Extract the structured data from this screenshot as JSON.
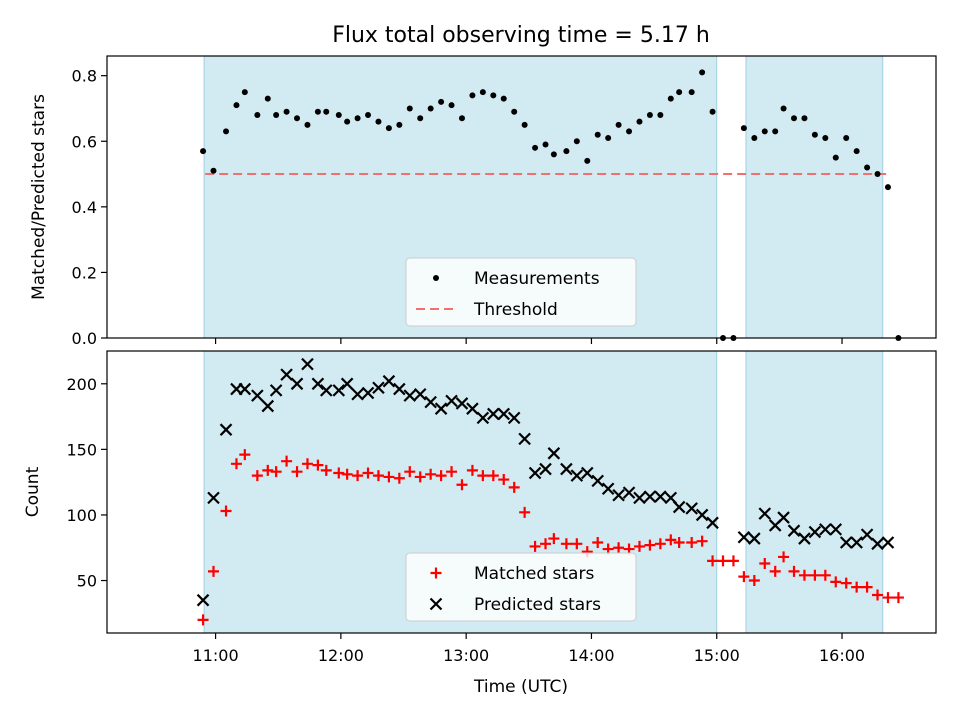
{
  "chart_data": {
    "title": "Flux total observing time = 5.17 h",
    "xlabel": "Time (UTC)",
    "x_ticks": [
      "11:00",
      "12:00",
      "13:00",
      "14:00",
      "15:00",
      "16:00"
    ],
    "x_tick_minutes": [
      660,
      720,
      780,
      840,
      900,
      960
    ],
    "xlim_minutes": [
      608,
      1005
    ],
    "shaded_intervals_minutes": [
      [
        654.5,
        900
      ],
      [
        914,
        979.5
      ]
    ],
    "shade_color": "#add8e6",
    "panels": [
      {
        "type": "scatter",
        "ylabel": "Matched/Predicted stars",
        "ylim": [
          0,
          0.86
        ],
        "y_ticks": [
          0.0,
          0.2,
          0.4,
          0.6,
          0.8
        ],
        "y_tick_labels": [
          "0.0",
          "0.2",
          "0.4",
          "0.6",
          "0.8"
        ],
        "threshold": {
          "label": "Threshold",
          "value": 0.5,
          "color": "#f07070"
        },
        "legend": {
          "position": "lower center",
          "entries": [
            "Measurements",
            "Threshold"
          ]
        },
        "series": [
          {
            "name": "Measurements",
            "marker": "dot",
            "color": "#000000",
            "times": [
              "10:54",
              "10:59",
              "11:05",
              "11:10",
              "11:14",
              "11:20",
              "11:25",
              "11:29",
              "11:34",
              "11:39",
              "11:44",
              "11:49",
              "11:53",
              "11:59",
              "12:03",
              "12:08",
              "12:13",
              "12:18",
              "12:23",
              "12:28",
              "12:33",
              "12:38",
              "12:43",
              "12:48",
              "12:53",
              "12:58",
              "13:03",
              "13:08",
              "13:13",
              "13:18",
              "13:23",
              "13:28",
              "13:33",
              "13:38",
              "13:42",
              "13:48",
              "13:53",
              "13:58",
              "14:03",
              "14:08",
              "14:13",
              "14:18",
              "14:23",
              "14:28",
              "14:33",
              "14:38",
              "14:42",
              "14:48",
              "14:53",
              "14:58",
              "15:03",
              "15:08",
              "15:13",
              "15:18",
              "15:23",
              "15:28",
              "15:32",
              "15:37",
              "15:42",
              "15:47",
              "15:52",
              "15:57",
              "16:02",
              "16:07",
              "16:12",
              "16:17",
              "16:22",
              "16:27"
            ],
            "values": [
              0.57,
              0.51,
              0.63,
              0.71,
              0.75,
              0.68,
              0.73,
              0.68,
              0.69,
              0.67,
              0.65,
              0.69,
              0.69,
              0.68,
              0.66,
              0.67,
              0.68,
              0.66,
              0.64,
              0.65,
              0.7,
              0.67,
              0.7,
              0.72,
              0.71,
              0.67,
              0.74,
              0.75,
              0.74,
              0.73,
              0.69,
              0.65,
              0.58,
              0.59,
              0.56,
              0.57,
              0.6,
              0.54,
              0.62,
              0.61,
              0.65,
              0.63,
              0.66,
              0.68,
              0.68,
              0.73,
              0.75,
              0.75,
              0.81,
              0.69,
              0.0,
              0.0,
              0.64,
              0.61,
              0.63,
              0.63,
              0.7,
              0.67,
              0.67,
              0.62,
              0.61,
              0.55,
              0.61,
              0.57,
              0.52,
              0.5,
              0.46,
              0.0
            ]
          }
        ]
      },
      {
        "type": "scatter",
        "ylabel": "Count",
        "ylim": [
          10,
          225
        ],
        "y_ticks": [
          50,
          100,
          150,
          200
        ],
        "y_tick_labels": [
          "50",
          "100",
          "150",
          "200"
        ],
        "legend": {
          "position": "lower center",
          "entries": [
            "Matched stars",
            "Predicted stars"
          ]
        },
        "series": [
          {
            "name": "Matched stars",
            "marker": "plus",
            "color": "#ff0000",
            "times": [
              "10:54",
              "10:59",
              "11:05",
              "11:10",
              "11:14",
              "11:20",
              "11:25",
              "11:29",
              "11:34",
              "11:39",
              "11:44",
              "11:49",
              "11:53",
              "11:59",
              "12:03",
              "12:08",
              "12:13",
              "12:18",
              "12:23",
              "12:28",
              "12:33",
              "12:38",
              "12:43",
              "12:48",
              "12:53",
              "12:58",
              "13:03",
              "13:08",
              "13:13",
              "13:18",
              "13:23",
              "13:28",
              "13:33",
              "13:38",
              "13:42",
              "13:48",
              "13:53",
              "13:58",
              "14:03",
              "14:08",
              "14:13",
              "14:18",
              "14:23",
              "14:28",
              "14:33",
              "14:38",
              "14:42",
              "14:48",
              "14:53",
              "14:58",
              "15:03",
              "15:08",
              "15:13",
              "15:18",
              "15:23",
              "15:28",
              "15:32",
              "15:37",
              "15:42",
              "15:47",
              "15:52",
              "15:57",
              "16:02",
              "16:07",
              "16:12",
              "16:17",
              "16:22",
              "16:27"
            ],
            "values": [
              20,
              57,
              103,
              139,
              146,
              130,
              134,
              133,
              141,
              133,
              139,
              138,
              134,
              132,
              131,
              130,
              132,
              130,
              129,
              128,
              133,
              129,
              131,
              130,
              133,
              123,
              134,
              130,
              130,
              127,
              121,
              102,
              76,
              78,
              82,
              78,
              78,
              72,
              79,
              74,
              75,
              74,
              76,
              77,
              78,
              81,
              79,
              79,
              80,
              65,
              65,
              65,
              53,
              50,
              63,
              57,
              68,
              57,
              54,
              54,
              54,
              49,
              48,
              45,
              45,
              39,
              37,
              37
            ]
          },
          {
            "name": "Predicted stars",
            "marker": "x",
            "color": "#000000",
            "times": [
              "10:54",
              "10:59",
              "11:05",
              "11:10",
              "11:14",
              "11:20",
              "11:25",
              "11:29",
              "11:34",
              "11:39",
              "11:44",
              "11:49",
              "11:53",
              "11:59",
              "12:03",
              "12:08",
              "12:13",
              "12:18",
              "12:23",
              "12:28",
              "12:33",
              "12:38",
              "12:43",
              "12:48",
              "12:53",
              "12:58",
              "13:03",
              "13:08",
              "13:13",
              "13:18",
              "13:23",
              "13:28",
              "13:33",
              "13:38",
              "13:42",
              "13:48",
              "13:53",
              "13:58",
              "14:03",
              "14:08",
              "14:13",
              "14:18",
              "14:23",
              "14:28",
              "14:33",
              "14:38",
              "14:42",
              "14:48",
              "14:53",
              "14:58",
              "15:13",
              "15:18",
              "15:23",
              "15:28",
              "15:32",
              "15:37",
              "15:42",
              "15:47",
              "15:52",
              "15:57",
              "16:02",
              "16:07",
              "16:12",
              "16:17",
              "16:22"
            ],
            "values": [
              35,
              113,
              165,
              196,
              196,
              191,
              183,
              195,
              207,
              200,
              215,
              200,
              195,
              195,
              200,
              192,
              193,
              197,
              202,
              196,
              191,
              192,
              186,
              181,
              187,
              185,
              181,
              174,
              177,
              177,
              174,
              158,
              132,
              135,
              147,
              135,
              130,
              132,
              126,
              120,
              115,
              117,
              113,
              114,
              114,
              113,
              106,
              105,
              100,
              94,
              83,
              82,
              101,
              92,
              98,
              88,
              82,
              87,
              89,
              89,
              79,
              79,
              85,
              78,
              79
            ]
          }
        ]
      }
    ]
  }
}
